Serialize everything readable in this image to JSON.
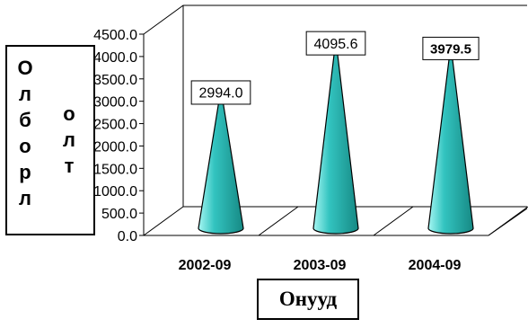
{
  "chart_data": {
    "type": "bar",
    "style": "3d-cone",
    "categories": [
      "2002-09",
      "2003-09",
      "2004-09"
    ],
    "values": [
      2994.0,
      4095.6,
      3979.5
    ],
    "data_labels": [
      "2994.0",
      "4095.6",
      "3979.5"
    ],
    "y_ticks": [
      "0.0",
      "500.0",
      "1000.0",
      "1500.0",
      "2000.0",
      "2500.0",
      "3000.0",
      "3500.0",
      "4000.0",
      "4500.0"
    ],
    "ylim": [
      0,
      4500
    ],
    "ylabel_lines": [
      [
        "О",
        "л",
        "б",
        "о",
        "р",
        "л"
      ],
      [
        "о",
        "л",
        "т"
      ]
    ],
    "xlabel": "Онууд",
    "grid": false,
    "legend": "none",
    "colors": {
      "cone_light": "#a6f6f2",
      "cone_main": "#33c4c0",
      "cone_dark": "#168984",
      "axis": "#000000"
    }
  }
}
